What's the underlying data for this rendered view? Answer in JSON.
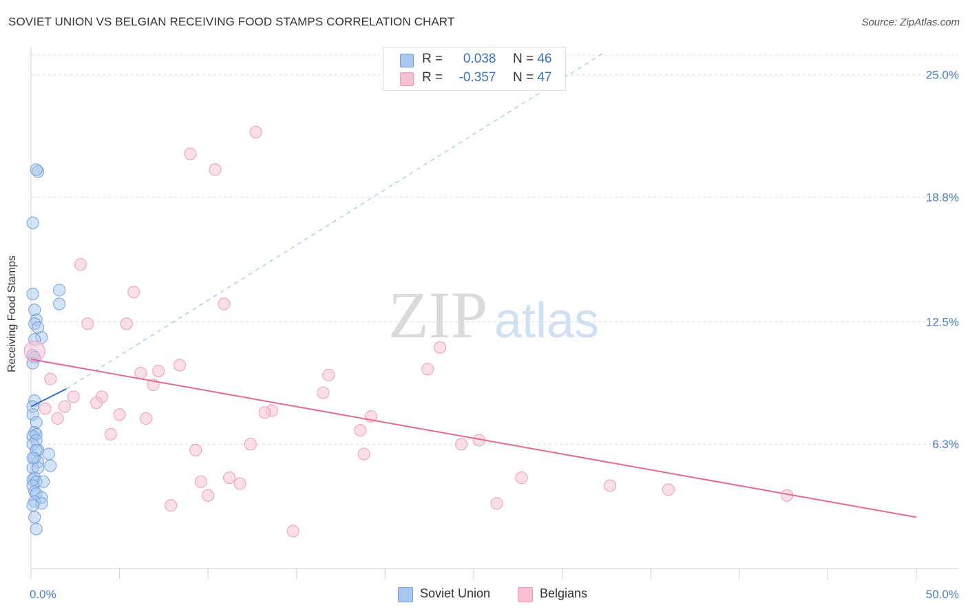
{
  "header": {
    "title": "SOVIET UNION VS BELGIAN RECEIVING FOOD STAMPS CORRELATION CHART",
    "source": "Source: ZipAtlas.com"
  },
  "watermark": {
    "zip": "ZIP",
    "atlas": "atlas"
  },
  "legend": {
    "series": [
      {
        "r_label": "R =",
        "r_value": "0.038",
        "n_label": "N =",
        "n_value": "46",
        "color": "#a9c8f0",
        "stroke": "#7ea9e0"
      },
      {
        "r_label": "R =",
        "r_value": "-0.357",
        "n_label": "N =",
        "n_value": "47",
        "color": "#f7bfd0",
        "stroke": "#ee9ab6"
      }
    ]
  },
  "chart_data": {
    "type": "scatter",
    "title": "SOVIET UNION VS BELGIAN RECEIVING FOOD STAMPS CORRELATION CHART",
    "xlabel": "",
    "ylabel": "Receiving Food Stamps",
    "xlim": [
      0,
      50
    ],
    "ylim": [
      0,
      26
    ],
    "x_ticks": [
      0,
      5,
      10,
      15,
      20,
      25,
      30,
      35,
      40,
      45,
      50
    ],
    "x_tick_labels": {
      "0": "0.0%",
      "50": "50.0%"
    },
    "y_gridlines": [
      6.3,
      12.5,
      18.8,
      25.0
    ],
    "y_tick_labels": [
      "6.3%",
      "12.5%",
      "18.8%",
      "25.0%"
    ],
    "grid": true,
    "series": [
      {
        "name": "Soviet Union",
        "color": "#a9c8f0",
        "stroke": "#6f9fdc",
        "line_color": "#2f6fc8",
        "trend": {
          "x0": 0,
          "y0": 8.2,
          "x1": 2.0,
          "y1": 9.1,
          "dash_to_x": 32.5
        },
        "points": [
          [
            0.4,
            20.1
          ],
          [
            0.3,
            20.2
          ],
          [
            0.1,
            17.5
          ],
          [
            1.6,
            14.1
          ],
          [
            1.6,
            13.4
          ],
          [
            0.1,
            13.9
          ],
          [
            0.2,
            13.1
          ],
          [
            0.3,
            12.6
          ],
          [
            0.2,
            12.4
          ],
          [
            0.4,
            12.2
          ],
          [
            0.6,
            11.7
          ],
          [
            0.2,
            11.6
          ],
          [
            0.1,
            10.8
          ],
          [
            0.2,
            10.7
          ],
          [
            0.1,
            10.4
          ],
          [
            0.2,
            8.5
          ],
          [
            0.1,
            8.2
          ],
          [
            0.1,
            7.8
          ],
          [
            0.3,
            7.4
          ],
          [
            0.2,
            6.9
          ],
          [
            0.3,
            6.8
          ],
          [
            0.1,
            6.7
          ],
          [
            0.3,
            6.5
          ],
          [
            0.1,
            6.3
          ],
          [
            0.4,
            6.0
          ],
          [
            1.0,
            5.8
          ],
          [
            0.2,
            5.6
          ],
          [
            0.4,
            5.4
          ],
          [
            1.1,
            5.2
          ],
          [
            0.1,
            5.1
          ],
          [
            0.4,
            5.1
          ],
          [
            0.2,
            4.6
          ],
          [
            0.1,
            4.5
          ],
          [
            0.3,
            4.4
          ],
          [
            0.7,
            4.4
          ],
          [
            0.1,
            4.2
          ],
          [
            0.2,
            3.9
          ],
          [
            0.3,
            3.8
          ],
          [
            0.6,
            3.6
          ],
          [
            0.2,
            3.4
          ],
          [
            0.6,
            3.3
          ],
          [
            0.1,
            3.2
          ],
          [
            0.2,
            2.6
          ],
          [
            0.3,
            2.0
          ],
          [
            0.3,
            6.0
          ],
          [
            0.1,
            5.6
          ]
        ]
      },
      {
        "name": "Belgians",
        "color": "#f7bfd0",
        "stroke": "#ee9ab6",
        "line_color": "#e4699a",
        "trend": {
          "x0": 0,
          "y0": 10.6,
          "x1": 50,
          "y1": 2.6
        },
        "points": [
          [
            0.2,
            11.0
          ],
          [
            12.7,
            22.1
          ],
          [
            9.0,
            21.0
          ],
          [
            10.4,
            20.2
          ],
          [
            2.8,
            15.4
          ],
          [
            5.8,
            14.0
          ],
          [
            10.9,
            13.4
          ],
          [
            3.2,
            12.4
          ],
          [
            5.4,
            12.4
          ],
          [
            23.1,
            11.2
          ],
          [
            22.4,
            10.1
          ],
          [
            8.4,
            10.3
          ],
          [
            7.2,
            10.0
          ],
          [
            6.2,
            9.9
          ],
          [
            16.8,
            9.8
          ],
          [
            1.1,
            9.6
          ],
          [
            6.9,
            9.3
          ],
          [
            16.5,
            8.9
          ],
          [
            2.4,
            8.7
          ],
          [
            4.0,
            8.7
          ],
          [
            3.7,
            8.4
          ],
          [
            1.9,
            8.2
          ],
          [
            0.8,
            8.1
          ],
          [
            13.6,
            8.0
          ],
          [
            13.2,
            7.9
          ],
          [
            5.0,
            7.8
          ],
          [
            19.2,
            7.7
          ],
          [
            6.5,
            7.6
          ],
          [
            1.5,
            7.6
          ],
          [
            18.6,
            7.0
          ],
          [
            4.5,
            6.8
          ],
          [
            25.3,
            6.5
          ],
          [
            24.3,
            6.3
          ],
          [
            12.4,
            6.3
          ],
          [
            9.3,
            6.0
          ],
          [
            18.8,
            5.8
          ],
          [
            27.7,
            4.6
          ],
          [
            11.2,
            4.6
          ],
          [
            9.6,
            4.4
          ],
          [
            11.8,
            4.3
          ],
          [
            32.7,
            4.2
          ],
          [
            36.0,
            4.0
          ],
          [
            42.7,
            3.7
          ],
          [
            10.0,
            3.7
          ],
          [
            26.3,
            3.3
          ],
          [
            7.9,
            3.2
          ],
          [
            14.8,
            1.9
          ]
        ]
      }
    ]
  }
}
